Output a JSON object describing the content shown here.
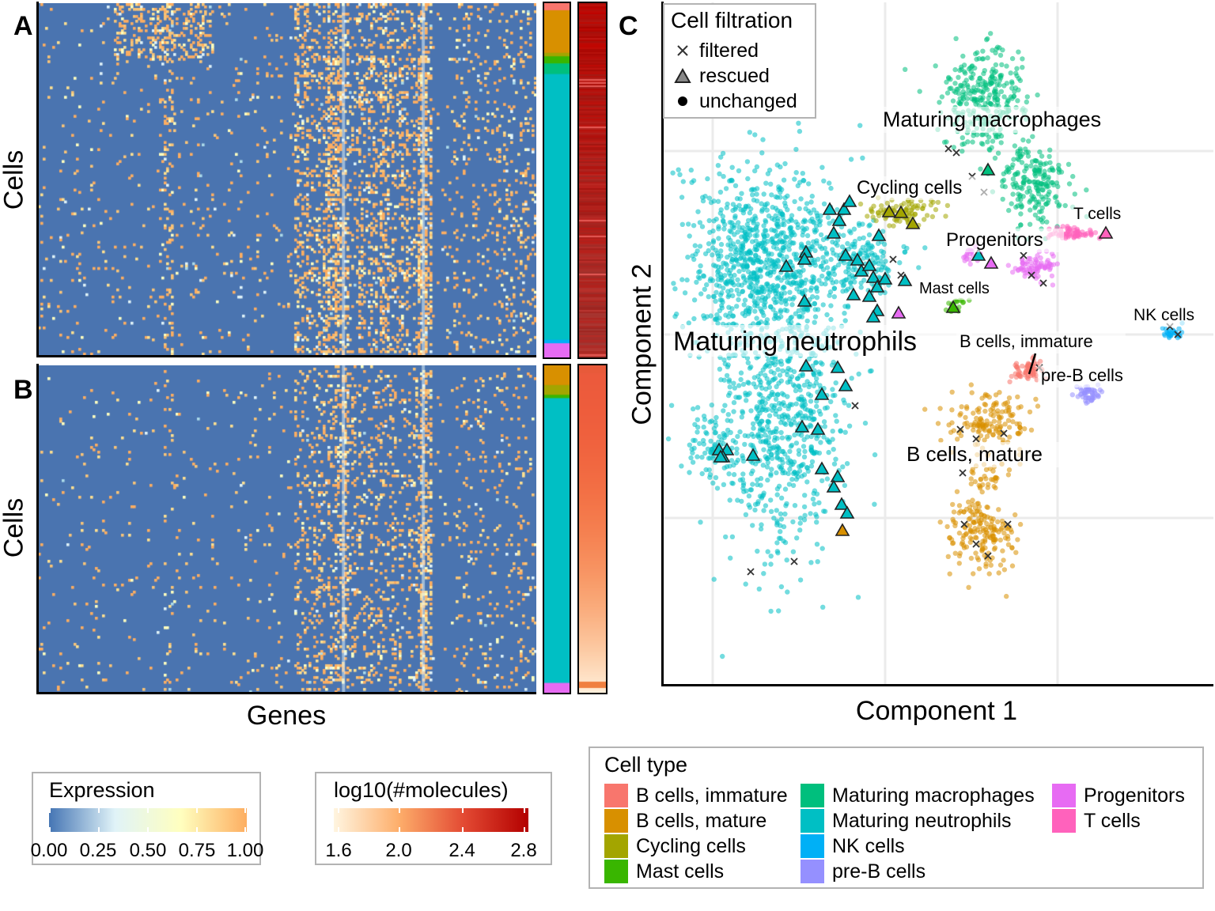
{
  "panels": {
    "a": "A",
    "b": "B",
    "c": "C"
  },
  "heatmap": {
    "y_label_a": "Cells",
    "y_label_b": "Cells",
    "x_label": "Genes"
  },
  "tsne": {
    "x_label": "Component 1",
    "y_label": "Component 2"
  },
  "filtration_legend": {
    "title": "Cell filtration",
    "items": [
      {
        "label": "filtered",
        "icon": "cross-icon"
      },
      {
        "label": "rescued",
        "icon": "triangle-icon"
      },
      {
        "label": "unchanged",
        "icon": "dot-icon"
      }
    ]
  },
  "expression_legend": {
    "title": "Expression",
    "ticks": [
      "0.00",
      "0.25",
      "0.50",
      "0.75",
      "1.00"
    ],
    "colors": [
      "#4575b4",
      "#e0f3f8",
      "#ffffbf",
      "#fdae61"
    ]
  },
  "molecules_legend": {
    "title": "log10(#molecules)",
    "ticks": [
      "1.6",
      "2.0",
      "2.4",
      "2.8"
    ],
    "colors": [
      "#fff5e0",
      "#fdae6b",
      "#e34a33",
      "#b30000"
    ]
  },
  "celltype_legend": {
    "title": "Cell type",
    "items": [
      {
        "label": "B cells, immature",
        "color": "#F8766D"
      },
      {
        "label": "B cells, mature",
        "color": "#D89000"
      },
      {
        "label": "Cycling cells",
        "color": "#A3A500"
      },
      {
        "label": "Mast cells",
        "color": "#39B600"
      },
      {
        "label": "Maturing macrophages",
        "color": "#00BF7D"
      },
      {
        "label": "Maturing neutrophils",
        "color": "#00BFC4"
      },
      {
        "label": "NK cells",
        "color": "#00B0F6"
      },
      {
        "label": "pre-B cells",
        "color": "#9590FF"
      },
      {
        "label": "Progenitors",
        "color": "#E76BF3"
      },
      {
        "label": "T cells",
        "color": "#FF62BC"
      }
    ]
  },
  "chart_data": [
    {
      "type": "heatmap",
      "panel": "A",
      "xlabel": "Genes",
      "ylabel": "Cells",
      "value_range": [
        0,
        1
      ],
      "annotation_tracks": [
        "Cell type",
        "log10(#molecules)"
      ]
    },
    {
      "type": "heatmap",
      "panel": "B",
      "xlabel": "Genes",
      "ylabel": "Cells",
      "value_range": [
        0,
        1
      ],
      "annotation_tracks": [
        "Cell type",
        "log10(#molecules)"
      ]
    },
    {
      "type": "scatter",
      "panel": "C",
      "xlabel": "Component 1",
      "ylabel": "Component 2",
      "grid": true,
      "legend_position": "top-left",
      "cluster_labels": [
        {
          "label": "Maturing macrophages",
          "x": 0.56,
          "y": 0.82
        },
        {
          "label": "Cycling cells",
          "x": 0.45,
          "y": 0.73
        },
        {
          "label": "T cells",
          "x": 0.79,
          "y": 0.69
        },
        {
          "label": "Progenitors",
          "x": 0.61,
          "y": 0.65
        },
        {
          "label": "Mast cells",
          "x": 0.54,
          "y": 0.59
        },
        {
          "label": "NK cells",
          "x": 0.92,
          "y": 0.55
        },
        {
          "label": "Maturing neutrophils",
          "x": 0.18,
          "y": 0.51
        },
        {
          "label": "B cells, immature",
          "x": 0.62,
          "y": 0.51
        },
        {
          "label": "pre-B cells",
          "x": 0.67,
          "y": 0.46
        },
        {
          "label": "B cells, mature",
          "x": 0.5,
          "y": 0.34
        }
      ]
    }
  ]
}
